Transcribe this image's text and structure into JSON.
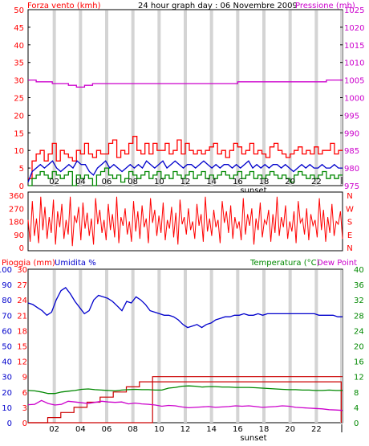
{
  "colors": {
    "wind": "#ff0000",
    "gust": "#ff0000",
    "wind_avg": "#0000cc",
    "wind_min": "#008800",
    "pressure": "#cc00cc",
    "direction": "#ff0000",
    "rain": "#cc0000",
    "humidity": "#0000cc",
    "temperature": "#008800",
    "dewpoint": "#cc00cc",
    "left_axis": "#ff0000",
    "right_pressure_axis": "#cc00cc",
    "rain_axis": "#ff0000",
    "humidity_axis": "#0000cc",
    "temp_axis": "#008800",
    "grid_band": "#d4d4d4"
  },
  "header": {
    "wind_label": "Forza vento (kmh)",
    "title": "24 hour graph day : 06 Novembre 2009",
    "pressure_label": "Pressione (mb)"
  },
  "panel3_header": {
    "rain_label": "Pioggia (mm)",
    "humidity_label": "Umidita %",
    "temp_label": "Temperatura (°C)",
    "dew_label": "Dew Point"
  },
  "x_ticks": [
    "02",
    "04",
    "06",
    "08",
    "10",
    "12",
    "14",
    "16",
    "18",
    "20",
    "22"
  ],
  "sunset_label": "sunset",
  "chart_data": [
    {
      "type": "line",
      "panel": "wind_pressure",
      "x_range_hours": [
        0,
        24
      ],
      "left_axis": {
        "label": "Forza vento (kmh)",
        "ticks": [
          0,
          5,
          10,
          15,
          20,
          25,
          30,
          35,
          40,
          45,
          50
        ],
        "ylim": [
          0,
          50
        ]
      },
      "right_axis": {
        "label": "Pressione (mb)",
        "ticks": [
          975,
          980,
          985,
          990,
          995,
          1000,
          1005,
          1010,
          1015,
          1020,
          1025
        ],
        "ylim": [
          975,
          1025
        ]
      },
      "series": [
        {
          "key": "wind_max",
          "axis": "left",
          "values": [
            2,
            7,
            9,
            10,
            7,
            9,
            12,
            7,
            10,
            9,
            8,
            7,
            10,
            9,
            12,
            9,
            8,
            10,
            9,
            9,
            12,
            13,
            8,
            10,
            9,
            12,
            14,
            10,
            9,
            12,
            9,
            12,
            10,
            10,
            12,
            9,
            10,
            13,
            9,
            12,
            10,
            9,
            10,
            9,
            10,
            11,
            12,
            9,
            10,
            8,
            10,
            12,
            11,
            9,
            10,
            12,
            9,
            10,
            9,
            8,
            11,
            12,
            10,
            9,
            8,
            9,
            10,
            11,
            9,
            10,
            9,
            11,
            9,
            10,
            10,
            12,
            9,
            10
          ]
        },
        {
          "key": "wind_avg",
          "axis": "left",
          "values": [
            1,
            4,
            5,
            6,
            5,
            6,
            7,
            5,
            4,
            5,
            6,
            5,
            7,
            6,
            6,
            4,
            3,
            5,
            6,
            7,
            5,
            6,
            5,
            4,
            5,
            6,
            5,
            6,
            5,
            7,
            6,
            5,
            6,
            7,
            5,
            6,
            7,
            6,
            5,
            6,
            6,
            5,
            6,
            7,
            6,
            5,
            6,
            5,
            6,
            6,
            5,
            6,
            5,
            6,
            7,
            5,
            6,
            5,
            6,
            5,
            6,
            6,
            5,
            6,
            5,
            4,
            5,
            6,
            5,
            6,
            5,
            5,
            6,
            5,
            5,
            6,
            5,
            5
          ]
        },
        {
          "key": "wind_min",
          "axis": "left",
          "values": [
            0,
            2,
            3,
            4,
            3,
            2,
            4,
            3,
            2,
            3,
            4,
            0,
            3,
            2,
            3,
            2,
            0,
            3,
            4,
            5,
            3,
            2,
            3,
            1,
            2,
            4,
            3,
            2,
            3,
            4,
            2,
            3,
            4,
            2,
            3,
            2,
            4,
            3,
            2,
            3,
            4,
            2,
            3,
            4,
            2,
            3,
            2,
            3,
            4,
            3,
            2,
            3,
            4,
            2,
            3,
            4,
            2,
            3,
            2,
            3,
            4,
            3,
            2,
            3,
            2,
            1,
            3,
            4,
            3,
            2,
            3,
            2,
            3,
            4,
            2,
            3,
            2,
            3
          ]
        },
        {
          "key": "pressure",
          "axis": "right",
          "values": [
            1005,
            1005,
            1004.5,
            1004.5,
            1004.5,
            1004.5,
            1004,
            1004,
            1004,
            1004,
            1003.5,
            1003.5,
            1003,
            1003,
            1003.5,
            1003.5,
            1004,
            1004,
            1004,
            1004,
            1004,
            1004,
            1004,
            1004,
            1004,
            1004,
            1004,
            1004,
            1004,
            1004,
            1004,
            1004,
            1004,
            1004,
            1004,
            1004,
            1004,
            1004,
            1004,
            1004,
            1004,
            1004,
            1004,
            1004,
            1004,
            1004,
            1004,
            1004,
            1004,
            1004,
            1004,
            1004,
            1004.5,
            1004.5,
            1004.5,
            1004.5,
            1004.5,
            1004.5,
            1004.5,
            1004.5,
            1004.5,
            1004.5,
            1004.5,
            1004.5,
            1004.5,
            1004.5,
            1004.5,
            1004.5,
            1004.5,
            1004.5,
            1004.5,
            1004.5,
            1004.5,
            1004.5,
            1005,
            1005,
            1005,
            1005
          ]
        }
      ]
    },
    {
      "type": "line",
      "panel": "wind_direction",
      "x_range_hours": [
        0,
        24
      ],
      "left_axis": {
        "ticks": [
          0,
          90,
          180,
          270,
          360
        ],
        "ylim": [
          0,
          360
        ]
      },
      "right_labels": [
        "N",
        "W",
        "S",
        "E",
        "N"
      ],
      "series": [
        {
          "key": "direction",
          "values": [
            190,
            40,
            320,
            80,
            200,
            30,
            350,
            120,
            280,
            60,
            210,
            100,
            330,
            20,
            250,
            140,
            300,
            60,
            190,
            90,
            350,
            10,
            220,
            170,
            280,
            50,
            310,
            130,
            240,
            80,
            200,
            20,
            340,
            160,
            260,
            100,
            190,
            50,
            300,
            120,
            230,
            70,
            350,
            30,
            210,
            150,
            270,
            90,
            180,
            40,
            320,
            110,
            250,
            60,
            290,
            140,
            200,
            30,
            340,
            170,
            260,
            80,
            220,
            100,
            310,
            50,
            190,
            130,
            280,
            70,
            240,
            20,
            330,
            160,
            210,
            90,
            270,
            120,
            180,
            60,
            300,
            150,
            230,
            40,
            350,
            110,
            200,
            80,
            260,
            140,
            190,
            30,
            320,
            170,
            250,
            100,
            290,
            60,
            210,
            130,
            180,
            50,
            340,
            90,
            230,
            150,
            270,
            20,
            200,
            120,
            310,
            70,
            190,
            160,
            260,
            40,
            230,
            100,
            350,
            80,
            210,
            140,
            290,
            60,
            180,
            110,
            250,
            30,
            320,
            170,
            200,
            90,
            270,
            50,
            230,
            150,
            190,
            70,
            340,
            120,
            260,
            40,
            210,
            100,
            300,
            80,
            180,
            160,
            250,
            60
          ]
        }
      ]
    },
    {
      "type": "line",
      "panel": "rain_humidity_temperature",
      "x_range_hours": [
        0,
        24
      ],
      "rain_axis": {
        "label": "Pioggia (mm)",
        "ticks": [
          0,
          3,
          6,
          9,
          12,
          15,
          18,
          21,
          24,
          27,
          30
        ],
        "ylim": [
          0,
          30
        ]
      },
      "humidity_axis": {
        "label": "Umidita %",
        "ticks": [
          0,
          10,
          20,
          30,
          40,
          50,
          60,
          70,
          80,
          90,
          100
        ],
        "ylim": [
          0,
          100
        ]
      },
      "temp_axis": {
        "label": "Temperatura (°C)",
        "ticks": [
          0,
          4,
          8,
          12,
          16,
          20,
          24,
          28,
          32,
          36,
          40
        ],
        "ylim": [
          0,
          40
        ]
      },
      "series": [
        {
          "key": "rain_daily",
          "axis": "rain",
          "x": [
            0,
            1.5,
            1.5,
            2.5,
            2.5,
            3.5,
            3.5,
            4.5,
            4.5,
            5.5,
            5.5,
            6.5,
            6.5,
            7.5,
            7.5,
            8.5,
            8.5,
            9.5,
            9.5,
            24
          ],
          "values": [
            0,
            0,
            1,
            1,
            2,
            2,
            3,
            3,
            4,
            4,
            5,
            5,
            6,
            6,
            7,
            7,
            8,
            8,
            9,
            9
          ]
        },
        {
          "key": "rain_rate",
          "axis": "rain",
          "x": [
            0,
            9.5,
            9.5,
            21,
            21,
            23.9,
            23.9
          ],
          "values": [
            0,
            0,
            8,
            8,
            8,
            8,
            0
          ]
        },
        {
          "key": "humidity",
          "axis": "humidity",
          "values": [
            78,
            77,
            75,
            73,
            70,
            72,
            80,
            86,
            88,
            84,
            79,
            75,
            71,
            73,
            80,
            83,
            82,
            81,
            79,
            76,
            73,
            79,
            78,
            82,
            80,
            77,
            73,
            72,
            71,
            70,
            70,
            69,
            67,
            64,
            62,
            63,
            64,
            62,
            64,
            65,
            67,
            68,
            69,
            69,
            70,
            70,
            71,
            70,
            70,
            71,
            70,
            71,
            71,
            71,
            71,
            71,
            71,
            71,
            71,
            71,
            71,
            71,
            70,
            70,
            70,
            70,
            69,
            69
          ]
        },
        {
          "key": "temperature",
          "axis": "temp",
          "values": [
            8.4,
            8.3,
            8.0,
            7.6,
            7.6,
            8.0,
            8.2,
            8.4,
            8.7,
            8.8,
            8.6,
            8.5,
            8.4,
            8.3,
            8.5,
            8.6,
            8.7,
            8.6,
            8.6,
            8.5,
            8.5,
            9.0,
            9.2,
            9.5,
            9.6,
            9.5,
            9.3,
            9.4,
            9.4,
            9.3,
            9.3,
            9.2,
            9.2,
            9.2,
            9.1,
            9.0,
            8.9,
            8.8,
            8.7,
            8.6,
            8.6,
            8.5,
            8.5,
            8.4,
            8.4,
            8.5,
            8.4,
            8.4
          ]
        },
        {
          "key": "dewpoint",
          "axis": "temp",
          "values": [
            4.7,
            4.8,
            5.8,
            5.0,
            4.6,
            4.8,
            5.6,
            5.4,
            5.2,
            5.0,
            5.3,
            5.6,
            5.4,
            5.3,
            5.4,
            4.9,
            5.1,
            4.9,
            4.8,
            4.6,
            4.3,
            4.5,
            4.4,
            4.1,
            3.9,
            4.0,
            4.1,
            4.2,
            4.0,
            4.1,
            4.2,
            4.4,
            4.3,
            4.4,
            4.2,
            4.0,
            4.1,
            4.2,
            4.4,
            4.3,
            4.0,
            3.9,
            3.8,
            3.7,
            3.6,
            3.4,
            3.3,
            3.2
          ]
        }
      ]
    }
  ]
}
